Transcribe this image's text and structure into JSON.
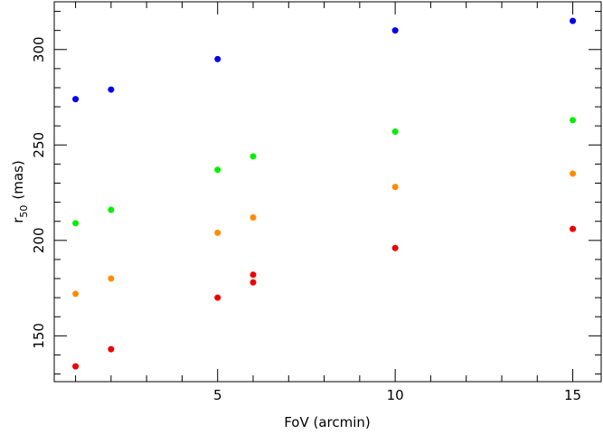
{
  "chart_data": {
    "type": "scatter",
    "xlabel": "FoV (arcmin)",
    "ylabel": {
      "main": "r",
      "sub": "50",
      "unit": "(mas)"
    },
    "xlim": [
      0.4,
      15.8
    ],
    "ylim": [
      126,
      325
    ],
    "xticks": [
      5,
      10,
      15
    ],
    "yticks": [
      150,
      200,
      250,
      300
    ],
    "x_minor_step": 1,
    "y_minor_step": 10,
    "grid": false,
    "legend": "none",
    "series": [
      {
        "color": "#0000ee",
        "points": [
          [
            1,
            274
          ],
          [
            2,
            279
          ],
          [
            5,
            295
          ],
          [
            10,
            310
          ],
          [
            15,
            315
          ]
        ]
      },
      {
        "color": "#00ee00",
        "points": [
          [
            1,
            209
          ],
          [
            2,
            216
          ],
          [
            5,
            237
          ],
          [
            6,
            244
          ],
          [
            10,
            257
          ],
          [
            15,
            263
          ]
        ]
      },
      {
        "color": "#ff8c00",
        "points": [
          [
            1,
            172
          ],
          [
            2,
            180
          ],
          [
            5,
            204
          ],
          [
            6,
            212
          ],
          [
            10,
            228
          ],
          [
            15,
            235
          ]
        ]
      },
      {
        "color": "#ee0000",
        "points": [
          [
            1,
            134
          ],
          [
            2,
            143
          ],
          [
            5,
            170
          ],
          [
            6,
            182
          ],
          [
            6,
            178
          ],
          [
            10,
            196
          ],
          [
            15,
            206
          ]
        ]
      }
    ]
  }
}
